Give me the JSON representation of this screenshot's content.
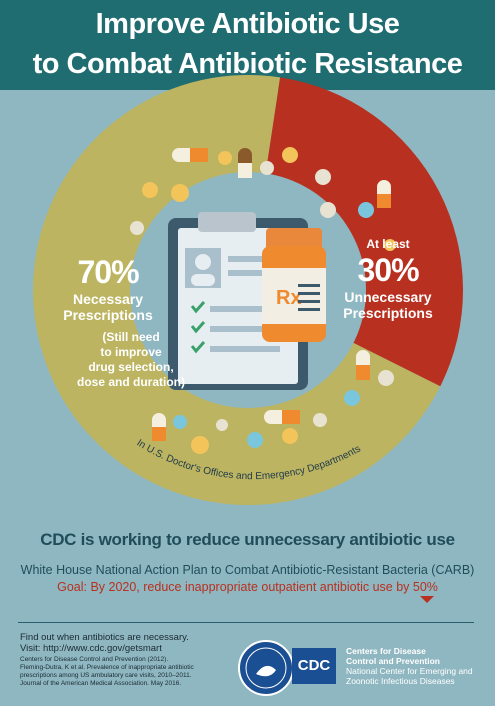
{
  "header": {
    "title_line1": "Improve Antibiotic Use",
    "title_line2": "to Combat Antibiotic Resistance"
  },
  "necessary": {
    "percent": "70%",
    "label_line1": "Necessary",
    "label_line2": "Prescriptions",
    "note_line1": "(Still need",
    "note_line2": "to improve",
    "note_line3": "drug selection,",
    "note_line4": "dose and duration)",
    "share": 70
  },
  "unnecessary": {
    "prefix": "At least",
    "percent": "30%",
    "label_line1": "Unnecessary",
    "label_line2": "Prescriptions",
    "share": 30
  },
  "setting": "In U.S. Doctor's Offices and Emergency Departments",
  "rx_label": "Rx",
  "cdc_effort": "CDC is working to reduce unnecessary antibiotic use",
  "carb": "White House National Action Plan to Combat Antibiotic-Resistant Bacteria (CARB)",
  "goal": "Goal: By 2020, reduce inappropriate outpatient antibiotic use by 50%",
  "footer": {
    "find_line1": "Find out when antibiotics are necessary.",
    "find_line2": "Visit: http://www.cdc.gov/getsmart",
    "ref1": "Centers for Disease Control and Prevention (2012).",
    "ref2": "Fleming-Dutra, K et al. Prevalence of inappropriate antibiotic",
    "ref3": "prescriptions among US ambulatory care visits, 2010–2011.",
    "ref4": "Journal of the American Medical Association. May 2016.",
    "cdc_logo": "CDC",
    "agency_line1": "Centers for Disease",
    "agency_line2": "Control and Prevention",
    "agency_line3": "National Center for Emerging and",
    "agency_line4": "Zoonotic Infectious Diseases"
  },
  "colors": {
    "banner": "#1f6d70",
    "background": "#8fb7c1",
    "necessary": "#bcb461",
    "unnecessary": "#b8301f",
    "cdc_blue": "#1b4f93"
  }
}
